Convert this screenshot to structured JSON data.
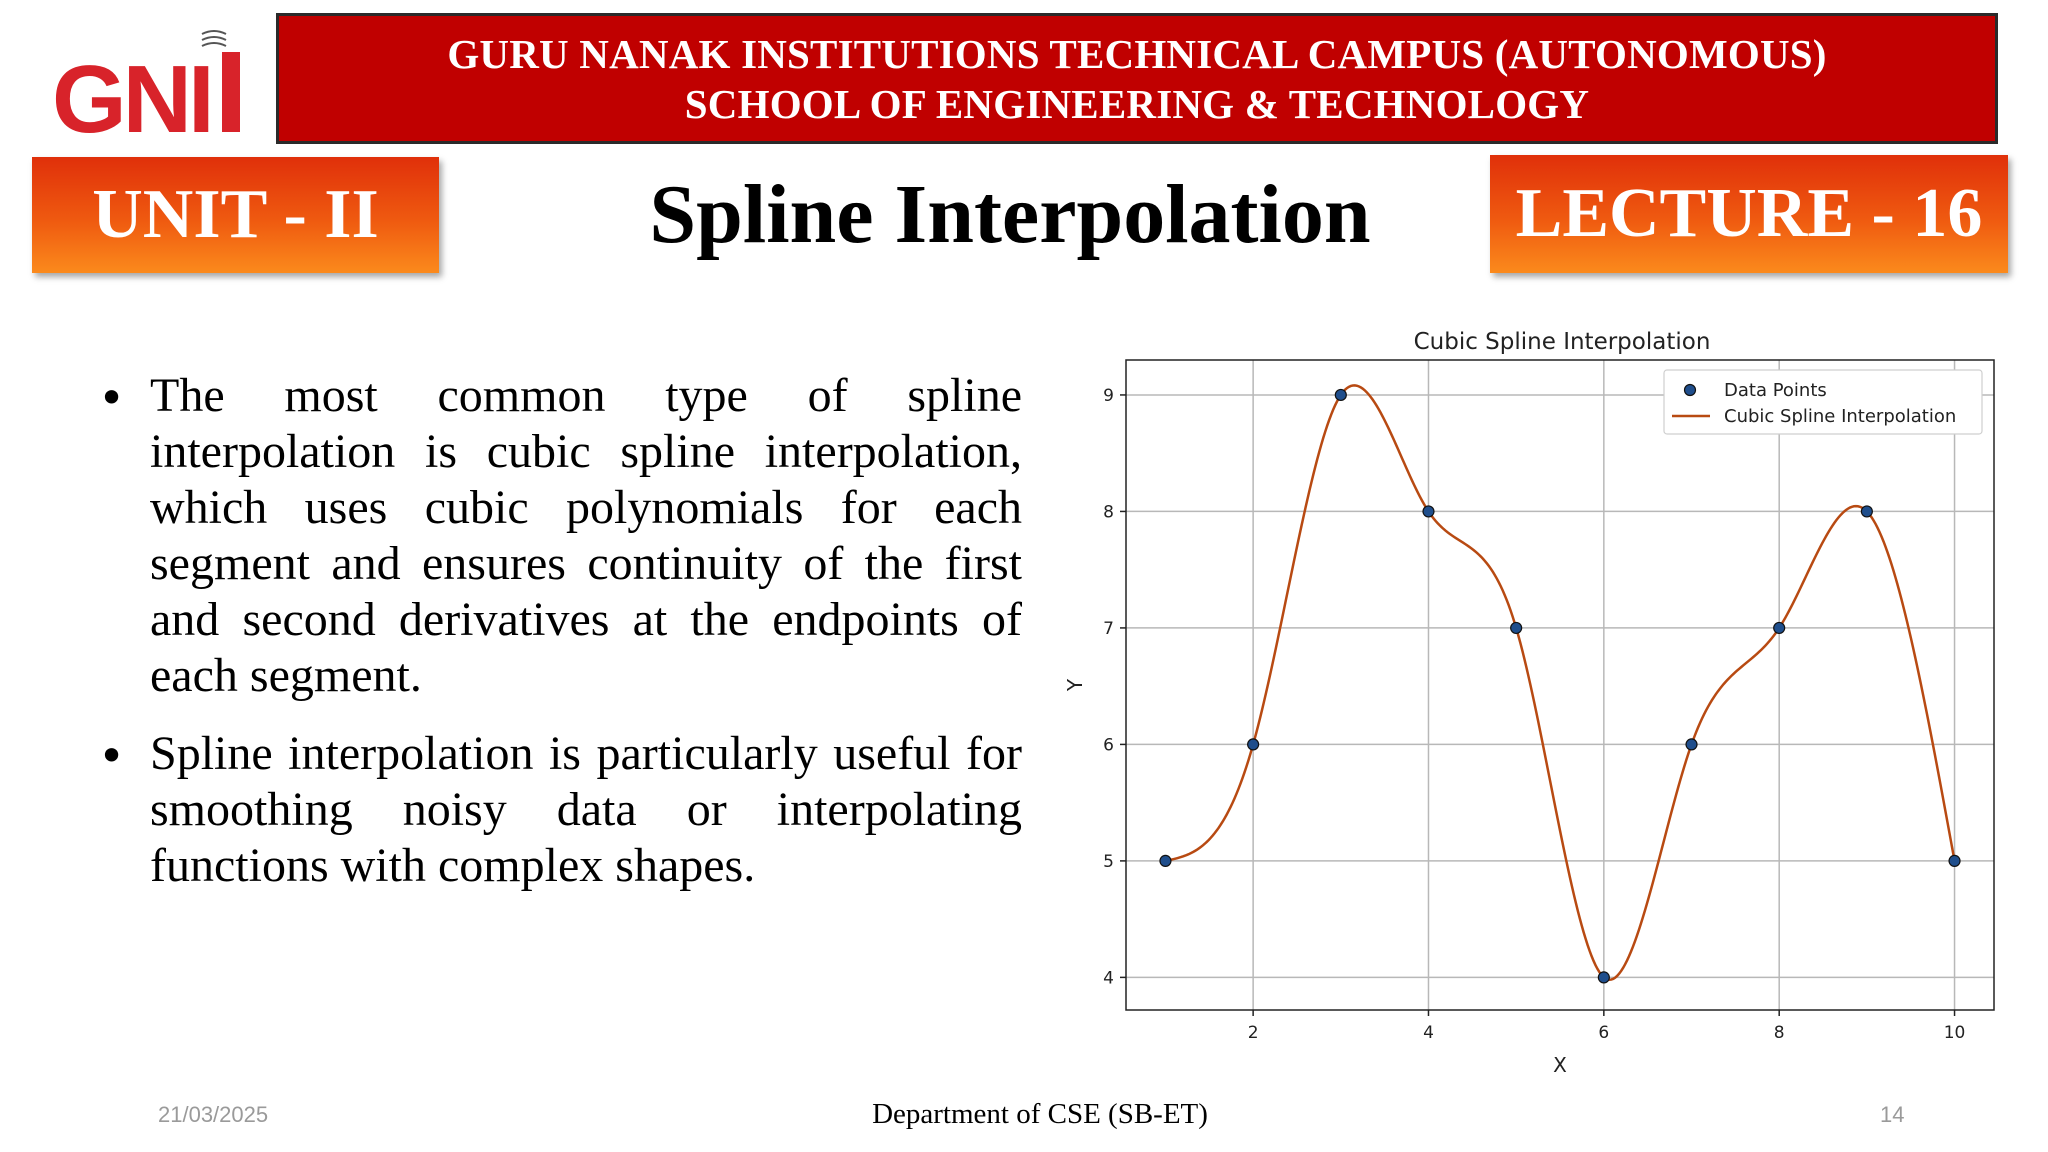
{
  "header": {
    "line1": "GURU NANAK INSTITUTIONS TECHNICAL CAMPUS (AUTONOMOUS)",
    "line2": "SCHOOL OF ENGINEERING & TECHNOLOGY"
  },
  "logo": {
    "text": "GNI",
    "icon": "gni-logo-icon",
    "color": "#d8232a"
  },
  "unit_label": "UNIT - II",
  "title": "Spline Interpolation",
  "lecture_label": "LECTURE - 16",
  "bullets": [
    "The most common type of spline interpolation is cubic spline interpolation, which uses cubic polynomials for each segment and ensures continuity of the first and second derivatives at the endpoints of each segment.",
    "Spline interpolation is particularly useful for smoothing noisy data or interpolating functions with complex shapes."
  ],
  "chart_data": {
    "type": "line",
    "title": "Cubic Spline Interpolation",
    "xlabel": "X",
    "ylabel": "Y",
    "xlim": [
      0.55,
      10.45
    ],
    "ylim": [
      3.72,
      9.3
    ],
    "xticks": [
      2,
      4,
      6,
      8,
      10
    ],
    "yticks": [
      4,
      5,
      6,
      7,
      8,
      9
    ],
    "grid": true,
    "legend_position": "top-right",
    "series": [
      {
        "name": "Data Points",
        "kind": "scatter",
        "color": "#1f4e8c",
        "x": [
          1,
          2,
          3,
          4,
          5,
          6,
          7,
          8,
          9,
          10
        ],
        "y": [
          5,
          6,
          9,
          8,
          7,
          4,
          6,
          7,
          8,
          5
        ]
      },
      {
        "name": "Cubic Spline Interpolation",
        "kind": "line",
        "color": "#b84a12",
        "x": [
          1,
          2,
          3,
          4,
          5,
          6,
          7,
          8,
          9,
          10
        ],
        "y": [
          5,
          6,
          9,
          8,
          7,
          4,
          6,
          7,
          8,
          5
        ]
      }
    ]
  },
  "footer": {
    "date": "21/03/2025",
    "department": "Department of CSE (SB-ET)",
    "page": "14"
  }
}
